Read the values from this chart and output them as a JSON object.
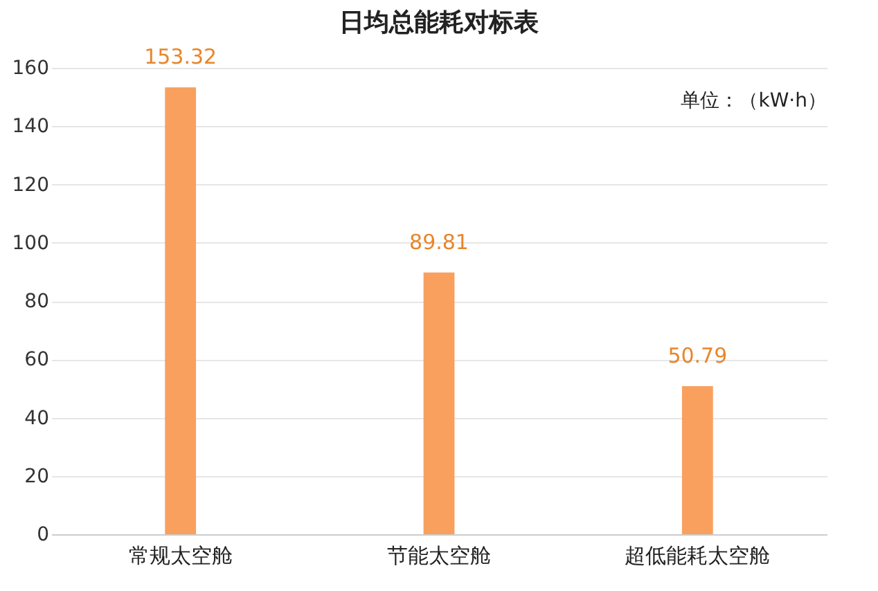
{
  "chart_data": {
    "type": "bar",
    "title": "日均总能耗对标表",
    "categories": [
      "常规太空舱",
      "节能太空舱",
      "超低能耗太空舱"
    ],
    "values": [
      153.32,
      89.81,
      50.79
    ],
    "color": "#f9a05e",
    "ylim": [
      0,
      160
    ],
    "yticks": [
      0,
      20,
      40,
      60,
      80,
      100,
      120,
      140,
      160
    ],
    "grid": "y",
    "data_labels": true,
    "annotations": [
      "单位：（kW·h）"
    ]
  }
}
